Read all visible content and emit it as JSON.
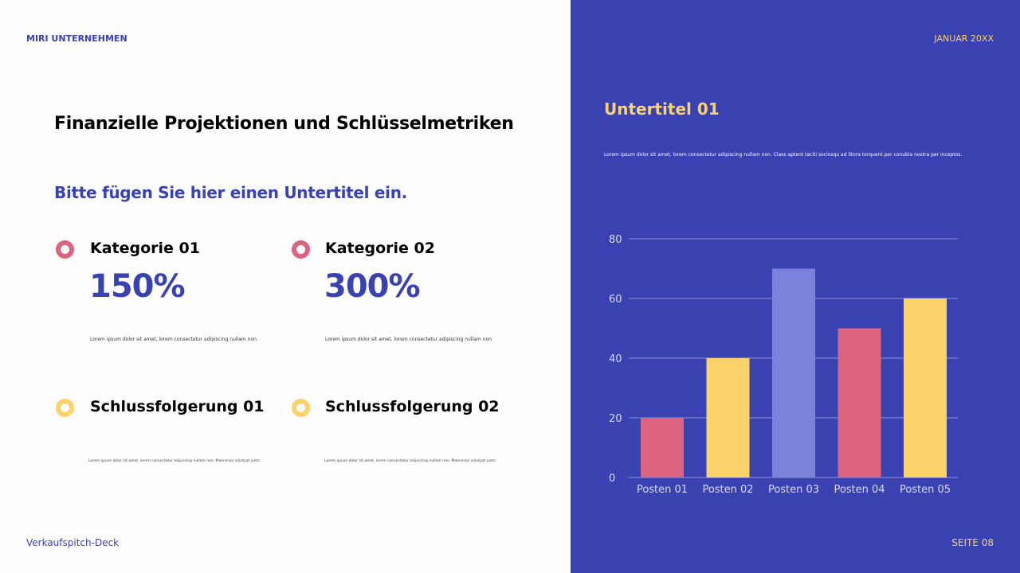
{
  "header": {
    "company": "MIRI UNTERNEHMEN",
    "date": "JANUAR 20XX"
  },
  "title": "Finanzielle Projektionen und Schlüsselmetriken",
  "subtitle": "Bitte fügen Sie hier einen Untertitel ein.",
  "metrics": [
    {
      "label": "Kategorie 01",
      "value": "150%",
      "text": "Lorem ipsum dolor sit amet, lorem consectetur adipiscing nullam non.",
      "color": "#dc6480"
    },
    {
      "label": "Kategorie 02",
      "value": "300%",
      "text": "Lorem ipsum dolor sit amet, lorem consectetur adipiscing nullam non.",
      "color": "#dc6480"
    }
  ],
  "conclusions": [
    {
      "label": "Schlussfolgerung 01",
      "text": "Lorem ipsum dolor sit amet, lorem consectetur adipiscing nullam non. Maecenas volutpat justo.",
      "color": "#fcd36b"
    },
    {
      "label": "Schlussfolgerung 02",
      "text": "Lorem ipsum dolor sit amet, lorem consectetur adipiscing nullam non. Maecenas volutpat justo.",
      "color": "#fcd36b"
    }
  ],
  "right": {
    "subtitle": "Untertitel 01",
    "text": "Lorem ipsum dolor sit amet, lorem consectetur adipiscing nullam non. Class aptent taciti sociosqu ad litora torquent per conubia nostra per inceptos."
  },
  "footer": {
    "deck": "Verkaufspitch-Deck",
    "page": "SEITE 08"
  },
  "chart_data": {
    "type": "bar",
    "categories": [
      "Posten 01",
      "Posten 02",
      "Posten 03",
      "Posten 04",
      "Posten 05"
    ],
    "values": [
      20,
      40,
      70,
      50,
      60
    ],
    "colors": [
      "#dc6480",
      "#fcd36b",
      "#7b82dc",
      "#dc6480",
      "#fcd36b"
    ],
    "ylim": [
      0,
      80
    ],
    "yticks": [
      0,
      20,
      40,
      60,
      80
    ],
    "grid": true
  }
}
